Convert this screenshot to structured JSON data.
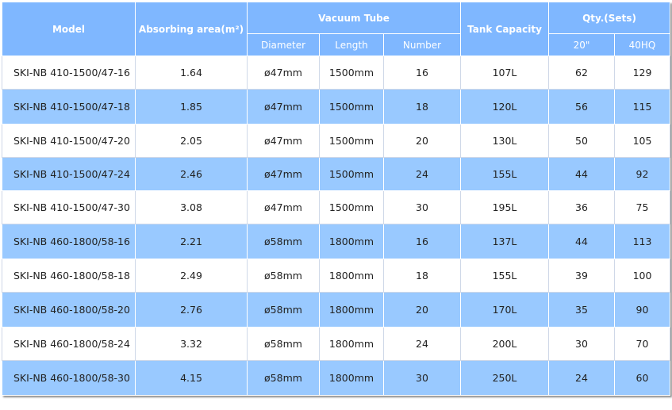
{
  "header": {
    "model": "Model",
    "absorbing_area": "Absorbing area(m²)",
    "vacuum_tube": "Vacuum Tube",
    "diameter": "Diameter",
    "length": "Length",
    "number": "Number",
    "tank_capacity": "Tank Capacity",
    "qty": "Qty.(Sets)",
    "qty_20": "20\"",
    "qty_40hq": "40HQ"
  },
  "rows": [
    {
      "model": "SKI-NB 410-1500/47-16",
      "area": "1.64",
      "diameter": "ø47mm",
      "length": "1500mm",
      "number": "16",
      "tank": "107L",
      "qty20": "62",
      "qty40": "129"
    },
    {
      "model": "SKI-NB 410-1500/47-18",
      "area": "1.85",
      "diameter": "ø47mm",
      "length": "1500mm",
      "number": "18",
      "tank": "120L",
      "qty20": "56",
      "qty40": "115"
    },
    {
      "model": "SKI-NB 410-1500/47-20",
      "area": "2.05",
      "diameter": "ø47mm",
      "length": "1500mm",
      "number": "20",
      "tank": "130L",
      "qty20": "50",
      "qty40": "105"
    },
    {
      "model": "SKI-NB 410-1500/47-24",
      "area": "2.46",
      "diameter": "ø47mm",
      "length": "1500mm",
      "number": "24",
      "tank": "155L",
      "qty20": "44",
      "qty40": "92"
    },
    {
      "model": "SKI-NB 410-1500/47-30",
      "area": "3.08",
      "diameter": "ø47mm",
      "length": "1500mm",
      "number": "30",
      "tank": "195L",
      "qty20": "36",
      "qty40": "75"
    },
    {
      "model": "SKI-NB 460-1800/58-16",
      "area": "2.21",
      "diameter": "ø58mm",
      "length": "1800mm",
      "number": "16",
      "tank": "137L",
      "qty20": "44",
      "qty40": "113"
    },
    {
      "model": "SKI-NB 460-1800/58-18",
      "area": "2.49",
      "diameter": "ø58mm",
      "length": "1800mm",
      "number": "18",
      "tank": "155L",
      "qty20": "39",
      "qty40": "100"
    },
    {
      "model": "SKI-NB 460-1800/58-20",
      "area": "2.76",
      "diameter": "ø58mm",
      "length": "1800mm",
      "number": "20",
      "tank": "170L",
      "qty20": "35",
      "qty40": "90"
    },
    {
      "model": "SKI-NB 460-1800/58-24",
      "area": "3.32",
      "diameter": "ø58mm",
      "length": "1800mm",
      "number": "24",
      "tank": "200L",
      "qty20": "30",
      "qty40": "70"
    },
    {
      "model": "SKI-NB 460-1800/58-30",
      "area": "4.15",
      "diameter": "ø58mm",
      "length": "1800mm",
      "number": "30",
      "tank": "250L",
      "qty20": "24",
      "qty40": "60"
    }
  ]
}
